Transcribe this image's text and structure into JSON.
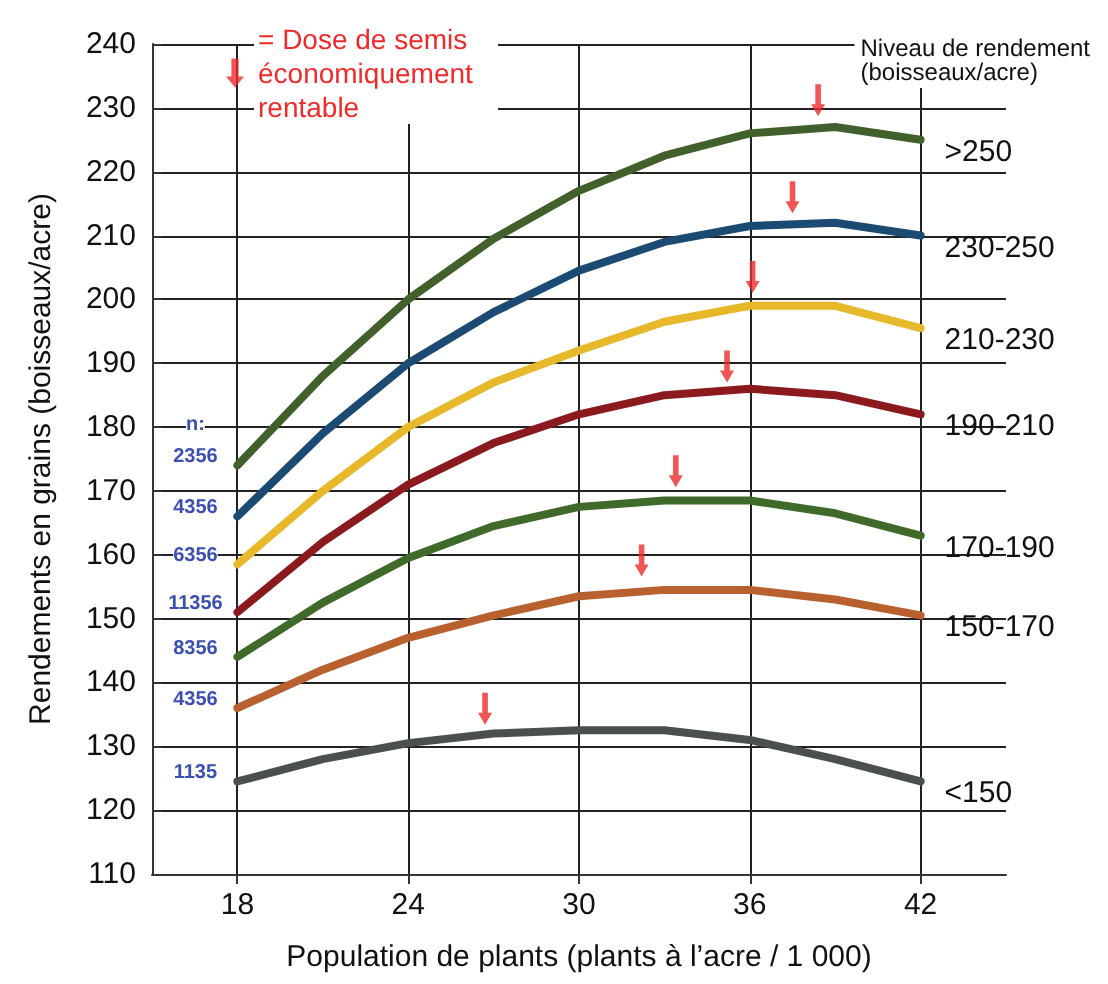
{
  "chart_data": {
    "type": "line",
    "xlabel": "Population de plants (plants à l’acre / 1 000)",
    "ylabel": "Rendements en grains (boisseaux/acre)",
    "legend_title": "Niveau de rendement (boisseaux/acre)",
    "xlim": [
      15,
      45
    ],
    "xticks": [
      18,
      24,
      30,
      36,
      42
    ],
    "ylim": [
      110,
      240
    ],
    "yticks": [
      110,
      120,
      130,
      140,
      150,
      160,
      170,
      180,
      190,
      200,
      210,
      220,
      230,
      240
    ],
    "grid": true,
    "legend": "top left",
    "marker": "none",
    "line_style": "solid",
    "x": [
      18,
      21,
      24,
      27,
      30,
      33,
      36,
      39,
      42
    ],
    "series": [
      {
        "name": ">250",
        "color": "#42602b",
        "values": [
          174,
          188,
          200,
          209.5,
          217,
          222.5,
          226,
          227,
          225
        ]
      },
      {
        "name": "230-250",
        "color": "#1b4a72",
        "values": [
          166,
          179,
          190,
          198,
          204.5,
          209,
          211.5,
          212,
          210
        ]
      },
      {
        "name": "210-230",
        "color": "#e6b82a",
        "values": [
          158.5,
          170,
          180,
          187,
          192,
          196.5,
          199,
          199,
          195.5
        ]
      },
      {
        "name": "190-210",
        "color": "#8b1a1f",
        "values": [
          151,
          162,
          171,
          177.5,
          182,
          185,
          186,
          185,
          182
        ]
      },
      {
        "name": "170-190",
        "color": "#3f6a2a",
        "values": [
          144,
          152.5,
          159.5,
          164.5,
          167.5,
          168.5,
          168.5,
          166.5,
          163
        ]
      },
      {
        "name": "150-170",
        "color": "#b9602f",
        "values": [
          136,
          142,
          147,
          150.5,
          153.5,
          154.5,
          154.5,
          153,
          150.5
        ]
      },
      {
        "name": "<150",
        "color": "#4a4f4f",
        "values": [
          124.5,
          128,
          130.5,
          132,
          132.5,
          132.5,
          131,
          128,
          124.5
        ]
      },
      {
        "name": "= Dose de semis économiquement rentable",
        "type": "scatter",
        "color": "#ee2a2a",
        "x": [
          38.4,
          37.5,
          36.1,
          35.2,
          33.4,
          32.2,
          26.7
        ],
        "values": [
          231.2,
          216,
          203.5,
          189.5,
          173.1,
          159.1,
          135.9
        ]
      }
    ],
    "annotations": [
      "n:",
      "2356",
      "4356",
      "6356",
      "11356",
      "8356",
      "4356",
      "1135"
    ]
  }
}
